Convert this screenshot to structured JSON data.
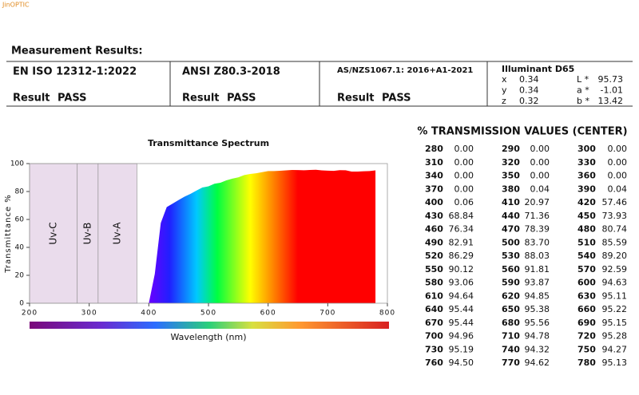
{
  "header": {
    "logo": "JinOPTIC",
    "title": "Measurement Results:"
  },
  "standards": [
    {
      "name": "EN ISO 12312-1:2022",
      "result_label": "Result",
      "result": "PASS"
    },
    {
      "name": "ANSI Z80.3-2018",
      "result_label": "Result",
      "result": "PASS"
    },
    {
      "name": "AS/NZS1067.1:  2016+A1-2021",
      "result_label": "Result",
      "result": "PASS"
    }
  ],
  "illuminant": {
    "title": "Illuminant D65",
    "values": [
      [
        "x",
        "0.34"
      ],
      [
        "y",
        "0.34"
      ],
      [
        "z",
        "0.32"
      ]
    ],
    "lab": [
      [
        "L *",
        "95.73"
      ],
      [
        "a *",
        "-1.01"
      ],
      [
        "b *",
        "13.42"
      ]
    ]
  },
  "chart_data": {
    "type": "area",
    "title": "Transmittance Spectrum",
    "xlabel": "Wavelength  (nm)",
    "ylabel": "Transmittance %",
    "xlim": [
      200,
      800
    ],
    "ylim": [
      0,
      100
    ],
    "xticks": [
      200,
      300,
      400,
      500,
      600,
      700,
      800
    ],
    "yticks": [
      0,
      20,
      40,
      60,
      80,
      100
    ],
    "regions": [
      {
        "label": "Uv-C",
        "from": 200,
        "to": 280
      },
      {
        "label": "Uv-B",
        "from": 280,
        "to": 315
      },
      {
        "label": "Uv-A",
        "from": 315,
        "to": 380
      }
    ],
    "x": [
      280,
      290,
      300,
      310,
      320,
      330,
      340,
      350,
      360,
      370,
      380,
      390,
      400,
      410,
      420,
      430,
      440,
      450,
      460,
      470,
      480,
      490,
      500,
      510,
      520,
      530,
      540,
      550,
      560,
      570,
      580,
      590,
      600,
      610,
      620,
      630,
      640,
      650,
      660,
      670,
      680,
      690,
      700,
      710,
      720,
      730,
      740,
      750,
      760,
      770,
      780
    ],
    "values": [
      0,
      0,
      0,
      0,
      0,
      0,
      0,
      0,
      0,
      0,
      0.04,
      0.04,
      0.06,
      20.97,
      57.46,
      68.84,
      71.36,
      73.93,
      76.34,
      78.39,
      80.74,
      82.91,
      83.7,
      85.59,
      86.29,
      88.03,
      89.2,
      90.12,
      91.81,
      92.59,
      93.06,
      93.87,
      94.63,
      94.64,
      94.85,
      95.11,
      95.44,
      95.38,
      95.22,
      95.44,
      95.56,
      95.15,
      94.96,
      94.78,
      95.28,
      95.19,
      94.32,
      94.27,
      94.5,
      94.62,
      95.13
    ]
  },
  "transmission_table": {
    "title": "% TRANSMISSION VALUES (CENTER)",
    "rows": [
      [
        [
          "280",
          "0.00"
        ],
        [
          "290",
          "0.00"
        ],
        [
          "300",
          "0.00"
        ]
      ],
      [
        [
          "310",
          "0.00"
        ],
        [
          "320",
          "0.00"
        ],
        [
          "330",
          "0.00"
        ]
      ],
      [
        [
          "340",
          "0.00"
        ],
        [
          "350",
          "0.00"
        ],
        [
          "360",
          "0.00"
        ]
      ],
      [
        [
          "370",
          "0.00"
        ],
        [
          "380",
          "0.04"
        ],
        [
          "390",
          "0.04"
        ]
      ],
      [
        [
          "400",
          "0.06"
        ],
        [
          "410",
          "20.97"
        ],
        [
          "420",
          "57.46"
        ]
      ],
      [
        [
          "430",
          "68.84"
        ],
        [
          "440",
          "71.36"
        ],
        [
          "450",
          "73.93"
        ]
      ],
      [
        [
          "460",
          "76.34"
        ],
        [
          "470",
          "78.39"
        ],
        [
          "480",
          "80.74"
        ]
      ],
      [
        [
          "490",
          "82.91"
        ],
        [
          "500",
          "83.70"
        ],
        [
          "510",
          "85.59"
        ]
      ],
      [
        [
          "520",
          "86.29"
        ],
        [
          "530",
          "88.03"
        ],
        [
          "540",
          "89.20"
        ]
      ],
      [
        [
          "550",
          "90.12"
        ],
        [
          "560",
          "91.81"
        ],
        [
          "570",
          "92.59"
        ]
      ],
      [
        [
          "580",
          "93.06"
        ],
        [
          "590",
          "93.87"
        ],
        [
          "600",
          "94.63"
        ]
      ],
      [
        [
          "610",
          "94.64"
        ],
        [
          "620",
          "94.85"
        ],
        [
          "630",
          "95.11"
        ]
      ],
      [
        [
          "640",
          "95.44"
        ],
        [
          "650",
          "95.38"
        ],
        [
          "660",
          "95.22"
        ]
      ],
      [
        [
          "670",
          "95.44"
        ],
        [
          "680",
          "95.56"
        ],
        [
          "690",
          "95.15"
        ]
      ],
      [
        [
          "700",
          "94.96"
        ],
        [
          "710",
          "94.78"
        ],
        [
          "720",
          "95.28"
        ]
      ],
      [
        [
          "730",
          "95.19"
        ],
        [
          "740",
          "94.32"
        ],
        [
          "750",
          "94.27"
        ]
      ],
      [
        [
          "760",
          "94.50"
        ],
        [
          "770",
          "94.62"
        ],
        [
          "780",
          "95.13"
        ]
      ]
    ]
  }
}
